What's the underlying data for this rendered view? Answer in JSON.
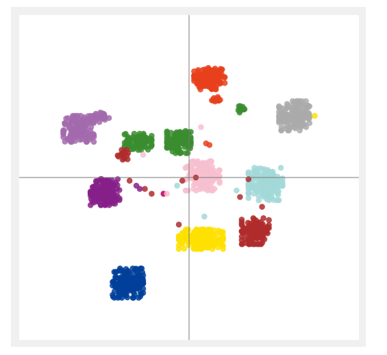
{
  "chart_data": {
    "type": "scatter",
    "title": "",
    "xlabel": "",
    "ylabel": "",
    "xlim": [
      -1,
      1
    ],
    "ylim": [
      -1,
      1
    ],
    "axes_through_origin": true,
    "grid": false,
    "tick_labels_shown": false,
    "clusters": [
      {
        "color": "#e8401c",
        "center": [
          0.12,
          0.61
        ],
        "spread": [
          0.09,
          0.07
        ],
        "count": 150
      },
      {
        "color": "#e8401c",
        "center": [
          0.16,
          0.48
        ],
        "spread": [
          0.03,
          0.02
        ],
        "count": 12
      },
      {
        "color": "#aaaaaa",
        "center": [
          0.62,
          0.38
        ],
        "spread": [
          0.09,
          0.09
        ],
        "count": 160
      },
      {
        "color": "#3a8d2f",
        "center": [
          0.31,
          0.42
        ],
        "spread": [
          0.02,
          0.02
        ],
        "count": 14
      },
      {
        "color": "#a36aad",
        "center": [
          -0.65,
          0.3
        ],
        "spread": [
          0.09,
          0.08
        ],
        "count": 140
      },
      {
        "color": "#a36aad",
        "center": [
          -0.52,
          0.37
        ],
        "spread": [
          0.05,
          0.03
        ],
        "count": 30
      },
      {
        "color": "#3a8d2f",
        "center": [
          -0.3,
          0.22
        ],
        "spread": [
          0.08,
          0.05
        ],
        "count": 80
      },
      {
        "color": "#3a8d2f",
        "center": [
          -0.06,
          0.22
        ],
        "spread": [
          0.07,
          0.07
        ],
        "count": 110
      },
      {
        "color": "#f7c0d0",
        "center": [
          0.08,
          0.01
        ],
        "spread": [
          0.1,
          0.09
        ],
        "count": 170
      },
      {
        "color": "#a3d8d8",
        "center": [
          0.45,
          -0.04
        ],
        "spread": [
          0.1,
          0.1
        ],
        "count": 170
      },
      {
        "color": "#87208a",
        "center": [
          -0.49,
          -0.09
        ],
        "spread": [
          0.09,
          0.08
        ],
        "count": 150
      },
      {
        "color": "#b02c2c",
        "center": [
          0.39,
          -0.33
        ],
        "spread": [
          0.08,
          0.08
        ],
        "count": 130
      },
      {
        "color": "#fee000",
        "center": [
          0.07,
          -0.38
        ],
        "spread": [
          0.13,
          0.06
        ],
        "count": 200
      },
      {
        "color": "#003f9a",
        "center": [
          -0.36,
          -0.65
        ],
        "spread": [
          0.09,
          0.09
        ],
        "count": 180
      },
      {
        "color": "#b02c2c",
        "center": [
          -0.38,
          0.14
        ],
        "spread": [
          0.04,
          0.03
        ],
        "count": 20
      }
    ],
    "scattered_points": [
      {
        "color": "#f7c0d0",
        "x": 0.07,
        "y": 0.31
      },
      {
        "color": "#f7c0d0",
        "x": -0.27,
        "y": 0.14
      },
      {
        "color": "#e8401c",
        "x": 0.12,
        "y": 0.2
      },
      {
        "color": "#e8401c",
        "x": 0.1,
        "y": 0.21
      },
      {
        "color": "#b02c2c",
        "x": 0.04,
        "y": 0.0
      },
      {
        "color": "#b02c2c",
        "x": -0.04,
        "y": -0.02
      },
      {
        "color": "#b02c2c",
        "x": -0.26,
        "y": -0.07
      },
      {
        "color": "#b02c2c",
        "x": -0.22,
        "y": -0.1
      },
      {
        "color": "#b02c2c",
        "x": -0.35,
        "y": -0.02
      },
      {
        "color": "#b02c2c",
        "x": 0.35,
        "y": -0.01
      },
      {
        "color": "#b02c2c",
        "x": 0.3,
        "y": -0.12
      },
      {
        "color": "#b02c2c",
        "x": -0.06,
        "y": -0.29
      },
      {
        "color": "#b02c2c",
        "x": 0.43,
        "y": -0.18
      },
      {
        "color": "#a3d8d8",
        "x": -0.07,
        "y": -0.05
      },
      {
        "color": "#a3d8d8",
        "x": 0.09,
        "y": -0.24
      },
      {
        "color": "#a3d8d8",
        "x": 0.28,
        "y": -0.08
      },
      {
        "color": "#87208a",
        "x": -0.15,
        "y": -0.1
      },
      {
        "color": "#87208a",
        "x": -0.31,
        "y": -0.05
      },
      {
        "color": "#87208a",
        "x": -0.29,
        "y": -0.07
      },
      {
        "color": "#d01e6e",
        "x": -0.15,
        "y": -0.1
      },
      {
        "color": "#f7c0d0",
        "x": -0.13,
        "y": -0.1
      },
      {
        "color": "#fee000",
        "x": 0.74,
        "y": 0.38
      }
    ]
  }
}
